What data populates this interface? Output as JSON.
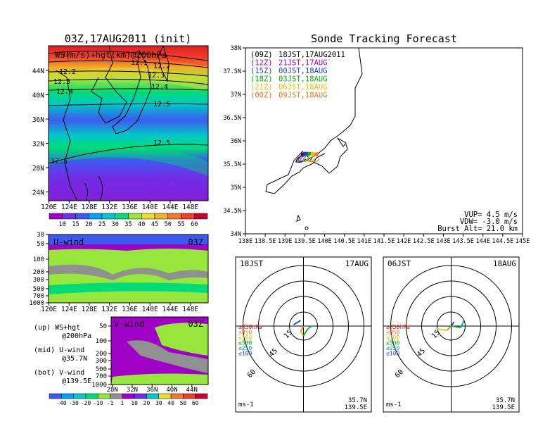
{
  "left_title": "03Z,17AUG2011 (init)",
  "right_title": "Sonde Tracking Forecast",
  "map_panel": {
    "overlay_label": "WS(m/s)+hgt(km)@200hPa",
    "x_ticks": [
      "120E",
      "124E",
      "128E",
      "132E",
      "136E",
      "140E",
      "144E",
      "148E"
    ],
    "y_ticks": [
      "44N",
      "40N",
      "36N",
      "32N",
      "28N",
      "24N"
    ],
    "contour_labels": [
      "12",
      "12.1",
      "12.2",
      "12.2",
      "12.3",
      "12.3",
      "12.4",
      "12.4",
      "12.5",
      "12.5",
      "12.5"
    ]
  },
  "ws_colorbar": {
    "labels": [
      "10",
      "15",
      "20",
      "25",
      "30",
      "35",
      "40",
      "45",
      "50",
      "55",
      "60"
    ],
    "colors": [
      "#a000c8",
      "#6e32e6",
      "#3c5af0",
      "#00a0ff",
      "#00c8c8",
      "#00dc78",
      "#96e63c",
      "#e6dc32",
      "#f0af28",
      "#f07828",
      "#f03c28",
      "#c8002d"
    ]
  },
  "u_panel": {
    "label": "U-wind",
    "time": "03Z",
    "y_ticks": [
      "30",
      "50",
      "100",
      "200",
      "300",
      "500",
      "700",
      "1000"
    ],
    "x_ticks": [
      "120E",
      "124E",
      "128E",
      "132E",
      "136E",
      "140E",
      "144E",
      "148E"
    ]
  },
  "v_panel": {
    "label": "V-wind",
    "time": "03Z",
    "y_ticks": [
      "50",
      "100",
      "200",
      "300",
      "500",
      "700",
      "1000"
    ],
    "x_ticks": [
      "28N",
      "32N",
      "36N",
      "40N",
      "44N"
    ]
  },
  "legend_notes": [
    {
      "key": "(up) WS+hgt",
      "value": "@200hPa"
    },
    {
      "key": "(mid) U-wind",
      "value": "@35.7N"
    },
    {
      "key": "(bot) V-wind",
      "value": "@139.5E"
    }
  ],
  "wind_colorbar": {
    "labels": [
      "-40",
      "-30",
      "-20",
      "-10",
      "-1",
      "1",
      "10",
      "20",
      "30",
      "40",
      "50",
      "60"
    ],
    "colors": [
      "#3c5af0",
      "#00a0ff",
      "#00c8c8",
      "#00dc78",
      "#96e63c",
      "#909090",
      "#a000c8",
      "#6e32e6",
      "#00c8c8",
      "#e6dc32",
      "#f07828",
      "#f03c28",
      "#c8002d"
    ]
  },
  "tracking": {
    "launches": [
      {
        "z": "(09Z)",
        "jst": "18JST,17AUG2011",
        "color": "#000000"
      },
      {
        "z": "(12Z)",
        "jst": "21JST,17AUG",
        "color": "#a000a0"
      },
      {
        "z": "(15Z)",
        "jst": "00JST,18AUG",
        "color": "#2040e0"
      },
      {
        "z": "(18Z)",
        "jst": "03JST,18AUG",
        "color": "#00b000"
      },
      {
        "z": "(21Z)",
        "jst": "06JST,18AUG",
        "color": "#d8c800"
      },
      {
        "z": "(00Z)",
        "jst": "09JST,18AUG",
        "color": "#f07828"
      }
    ],
    "x_ticks": [
      "138E",
      "138.5E",
      "139E",
      "139.5E",
      "140E",
      "140.5E",
      "141E",
      "141.5E",
      "142E",
      "142.5E",
      "143E",
      "143.5E",
      "144E",
      "144.5E",
      "145E"
    ],
    "y_ticks": [
      "38N",
      "37.5N",
      "37N",
      "36.5N",
      "36N",
      "35.5N",
      "35N",
      "34.5N",
      "34N"
    ],
    "params": [
      "VUP= 4.5 m/s",
      "VDW= -3.0 m/s",
      "Burst Alt= 21.0 km"
    ]
  },
  "chart_data": [
    {
      "type": "scatter",
      "title": "Sonde Tracking Forecast",
      "xlim": [
        138,
        145
      ],
      "ylim": [
        34,
        38
      ],
      "series": [
        {
          "name": "(09Z)",
          "x": [
            139.45
          ],
          "y": [
            35.7
          ]
        },
        {
          "name": "(12Z)",
          "x": [
            139.5
          ],
          "y": [
            35.72
          ]
        },
        {
          "name": "(15Z)",
          "x": [
            139.55
          ],
          "y": [
            35.72
          ]
        },
        {
          "name": "(18Z)",
          "x": [
            139.62
          ],
          "y": [
            35.72
          ]
        },
        {
          "name": "(21Z)",
          "x": [
            139.7
          ],
          "y": [
            35.72
          ]
        },
        {
          "name": "(00Z)",
          "x": [
            139.8
          ],
          "y": [
            35.71
          ]
        }
      ]
    }
  ],
  "hodo_left": {
    "left": "18JST",
    "right": "17AUG",
    "ring_labels": [
      "15",
      "45",
      "60"
    ],
    "levels": [
      "≥850hPa",
      "≤850",
      "≤700",
      "≤500",
      "≤250",
      "≤100"
    ],
    "unit": "ms-1",
    "lat": "35.7N",
    "lon": "139.5E"
  },
  "hodo_right": {
    "left": "06JST",
    "right": "18AUG",
    "ring_labels": [
      "15",
      "45",
      "60"
    ],
    "levels": [
      "≥850hPa",
      "≤850",
      "≤700",
      "≤500",
      "≤250",
      "≤100"
    ],
    "unit": "ms-1",
    "lat": "35.7N",
    "lon": "139.5E"
  },
  "level_colors": [
    "#e02020",
    "#f07828",
    "#d8c800",
    "#00b000",
    "#00a0d0",
    "#2040e0"
  ]
}
